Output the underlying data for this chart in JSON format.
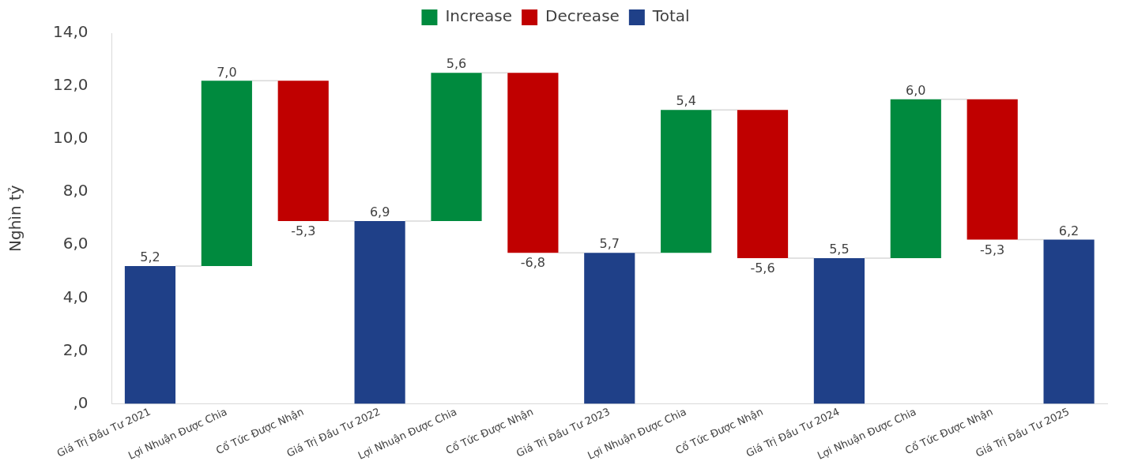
{
  "chart_data": {
    "type": "bar",
    "ylabel": "Nghìn tỷ",
    "categories": [
      "Giá Trị Đầu Tư 2021",
      "Lợi Nhuận Được Chia",
      "Cổ Tức Được Nhận",
      "Giá Trị Đầu Tư 2022",
      "Lợi Nhuận Được Chia",
      "Cổ Tức Được Nhận",
      "Giá Trị Đầu Tư 2023",
      "Lợi Nhuận Được Chia",
      "Cổ Tức Được Nhận",
      "Giá Trị Đầu Tư 2024",
      "Lợi Nhuận Được Chia",
      "Cổ Tức Được Nhận",
      "Giá Trị Đầu Tư 2025"
    ],
    "series": [
      {
        "name": "Increase",
        "color": "#008a3e",
        "values": [
          null,
          7.0,
          null,
          null,
          5.6,
          null,
          null,
          5.4,
          null,
          null,
          6.0,
          null,
          null
        ],
        "base": [
          null,
          5.2,
          null,
          null,
          6.9,
          null,
          null,
          5.7,
          null,
          null,
          5.5,
          null,
          null
        ],
        "value_labels": [
          null,
          "7,0",
          null,
          null,
          "5,6",
          null,
          null,
          "5,4",
          null,
          null,
          "6,0",
          null,
          null
        ]
      },
      {
        "name": "Decrease",
        "color": "#c00000",
        "values": [
          null,
          null,
          -5.3,
          null,
          null,
          -6.8,
          null,
          null,
          -5.6,
          null,
          null,
          -5.3,
          null
        ],
        "base": [
          null,
          null,
          12.2,
          null,
          null,
          12.5,
          null,
          null,
          11.1,
          null,
          null,
          11.5,
          null
        ],
        "value_labels": [
          null,
          null,
          "-5,3",
          null,
          null,
          "-6,8",
          null,
          null,
          "-5,6",
          null,
          null,
          "-5,3",
          null
        ]
      },
      {
        "name": "Total",
        "color": "#1f4088",
        "values": [
          5.2,
          null,
          null,
          6.9,
          null,
          null,
          5.7,
          null,
          null,
          5.5,
          null,
          null,
          6.2
        ],
        "value_labels": [
          "5,2",
          null,
          null,
          "6,9",
          null,
          null,
          "5,7",
          null,
          null,
          "5,5",
          null,
          null,
          "6,2"
        ]
      }
    ],
    "ylim": [
      0,
      14
    ],
    "yticks": [
      {
        "value": 0,
        "label": ",0"
      },
      {
        "value": 2,
        "label": "2,0"
      },
      {
        "value": 4,
        "label": "4,0"
      },
      {
        "value": 6,
        "label": "6,0"
      },
      {
        "value": 8,
        "label": "8,0"
      },
      {
        "value": 10,
        "label": "10,0"
      },
      {
        "value": 12,
        "label": "12,0"
      },
      {
        "value": 14,
        "label": "14,0"
      }
    ],
    "legend": "top"
  }
}
